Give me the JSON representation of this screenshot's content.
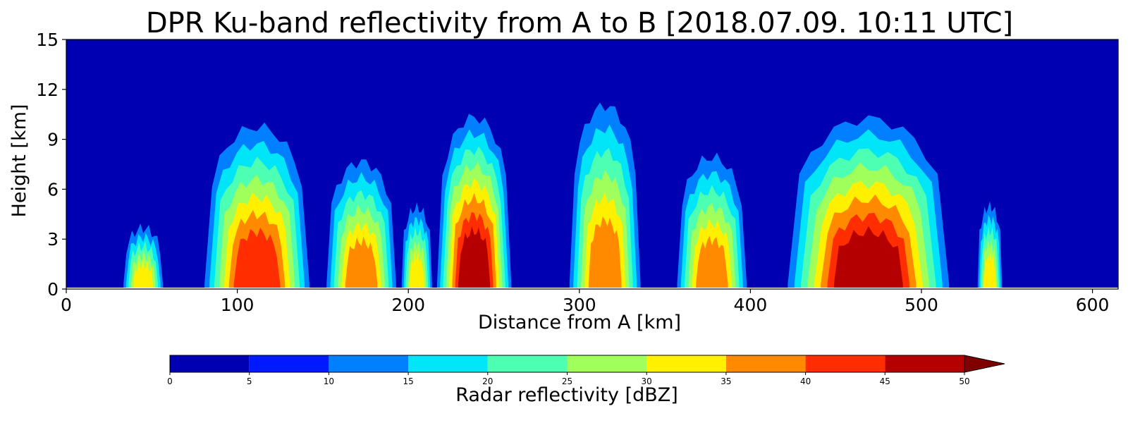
{
  "chart_data": {
    "type": "heatmap",
    "title": "DPR Ku-band reflectivity from A to B [2018.07.09. 10:11 UTC]",
    "xlabel": "Distance from A [km]",
    "ylabel": "Height [km]",
    "xlim": [
      0,
      615
    ],
    "ylim": [
      0,
      15
    ],
    "xticks": [
      0,
      100,
      200,
      300,
      400,
      500,
      600
    ],
    "yticks": [
      0,
      3,
      6,
      9,
      12,
      15
    ],
    "background_color": "#0000b3",
    "colorbar": {
      "label": "Radar reflectivity [dBZ]",
      "ticks": [
        0,
        5,
        10,
        15,
        20,
        25,
        30,
        35,
        40,
        45,
        50
      ],
      "extend": "max",
      "colors": [
        "#0000b3",
        "#0019ff",
        "#0080ff",
        "#00e5f8",
        "#4dffb3",
        "#a0ff5a",
        "#fff000",
        "#ff8a00",
        "#ff2d00",
        "#b40000"
      ],
      "extend_color": "#800000"
    },
    "cells": [
      {
        "x": [
          32,
          58
        ],
        "top": 4.2,
        "peak_dbz": 30
      },
      {
        "x": [
          78,
          145
        ],
        "top": 10.8,
        "peak_dbz": 40
      },
      {
        "x": [
          150,
          195
        ],
        "top": 8.6,
        "peak_dbz": 35
      },
      {
        "x": [
          195,
          215
        ],
        "top": 5.6,
        "peak_dbz": 30
      },
      {
        "x": [
          215,
          262
        ],
        "top": 11.3,
        "peak_dbz": 50
      },
      {
        "x": [
          292,
          338
        ],
        "top": 12.4,
        "peak_dbz": 35
      },
      {
        "x": [
          355,
          400
        ],
        "top": 8.9,
        "peak_dbz": 35
      },
      {
        "x": [
          418,
          520
        ],
        "top": 11.2,
        "peak_dbz": 45
      },
      {
        "x": [
          532,
          548
        ],
        "top": 5.7,
        "peak_dbz": 30
      }
    ]
  }
}
